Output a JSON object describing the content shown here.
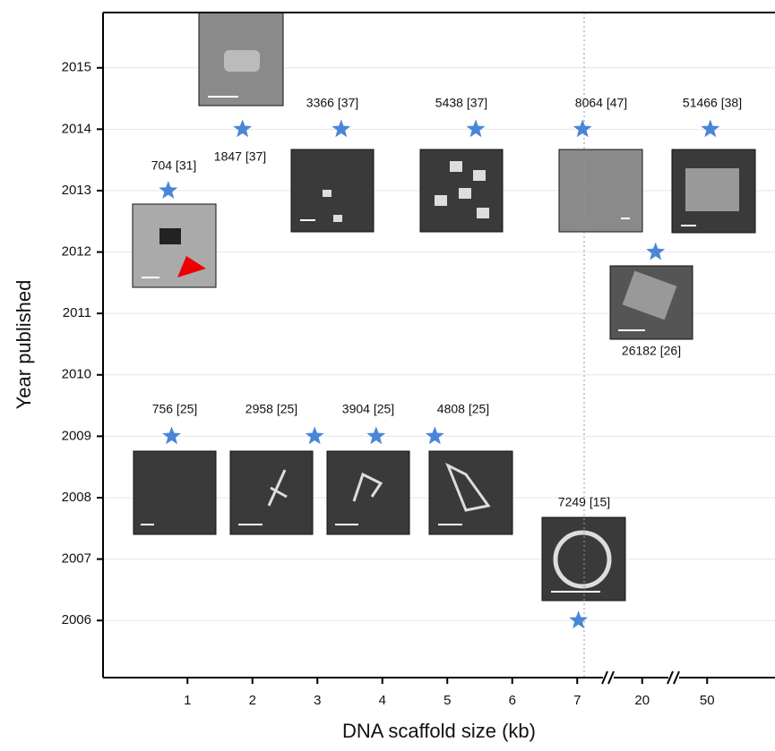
{
  "chart_data": {
    "type": "scatter",
    "x_label": "DNA scaffold size (kb)",
    "y_label": "Year published",
    "xlim": [
      -0.3,
      81
    ],
    "xticks": [
      1,
      2,
      3,
      4,
      5,
      6,
      7,
      20,
      50
    ],
    "ylim": [
      2005.07,
      2015.9
    ],
    "yticks": [
      2006,
      2007,
      2008,
      2009,
      2010,
      2011,
      2012,
      2013,
      2014,
      2015
    ],
    "grid": true,
    "color": "#4a86d8",
    "points": [
      {
        "x": 0.704,
        "y": 2013,
        "label": "704 [31]"
      },
      {
        "x": 1.847,
        "y": 2014,
        "label": "1847 [37]"
      },
      {
        "x": 3.366,
        "y": 2014,
        "label": "3366 [37]"
      },
      {
        "x": 5.438,
        "y": 2014,
        "label": "5438 [37]"
      },
      {
        "x": 8.064,
        "y": 2014,
        "label": "8064 [47]"
      },
      {
        "x": 51.466,
        "y": 2014,
        "label": "51466 [38]"
      },
      {
        "x": 0.756,
        "y": 2009,
        "label": "756 [25]"
      },
      {
        "x": 2.958,
        "y": 2009,
        "label": "2958 [25]"
      },
      {
        "x": 3.904,
        "y": 2009,
        "label": "3904 [25]"
      },
      {
        "x": 4.808,
        "y": 2009,
        "label": "4808 [25]"
      },
      {
        "x": 7.249,
        "y": 2006,
        "label": "7249 [15]"
      },
      {
        "x": 26.182,
        "y": 2012,
        "label": "26182 [26]"
      }
    ]
  }
}
